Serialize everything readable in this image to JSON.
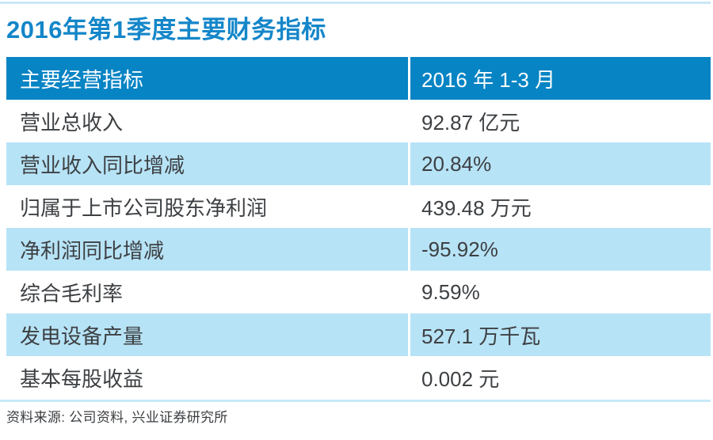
{
  "page": {
    "title": "2016年第1季度主要财务指标",
    "source_note": "资料来源: 公司资料, 兴业证券研究所"
  },
  "table": {
    "header": {
      "label": "主要经营指标",
      "value": "2016 年 1-3 月"
    },
    "rows": [
      {
        "label": "营业总收入",
        "value": "92.87 亿元"
      },
      {
        "label": "营业收入同比增减",
        "value": "20.84%"
      },
      {
        "label": "归属于上市公司股东净利润",
        "value": "439.48 万元"
      },
      {
        "label": "净利润同比增减",
        "value": "-95.92%"
      },
      {
        "label": "综合毛利率",
        "value": "9.59%"
      },
      {
        "label": "发电设备产量",
        "value": "527.1 万千瓦"
      },
      {
        "label": "基本每股收益",
        "value": "0.002 元"
      }
    ]
  },
  "chart_data": {
    "type": "table",
    "title": "2016年第1季度主要财务指标",
    "columns": [
      "主要经营指标",
      "2016 年 1-3 月"
    ],
    "rows": [
      [
        "营业总收入",
        "92.87 亿元"
      ],
      [
        "营业收入同比增减",
        "20.84%"
      ],
      [
        "归属于上市公司股东净利润",
        "439.48 万元"
      ],
      [
        "净利润同比增减",
        "-95.92%"
      ],
      [
        "综合毛利率",
        "9.59%"
      ],
      [
        "发电设备产量",
        "527.1 万千瓦"
      ],
      [
        "基本每股收益",
        "0.002 元"
      ]
    ],
    "source": "资料来源: 公司资料, 兴业证券研究所"
  },
  "colors": {
    "header_blue": "#0784c4",
    "title_blue": "#1486c9",
    "stripe_blue": "#b7e3f6",
    "hairline_blue": "#c9e8f8",
    "text_dark": "#3d4043",
    "note_gray": "#3a3d40"
  }
}
